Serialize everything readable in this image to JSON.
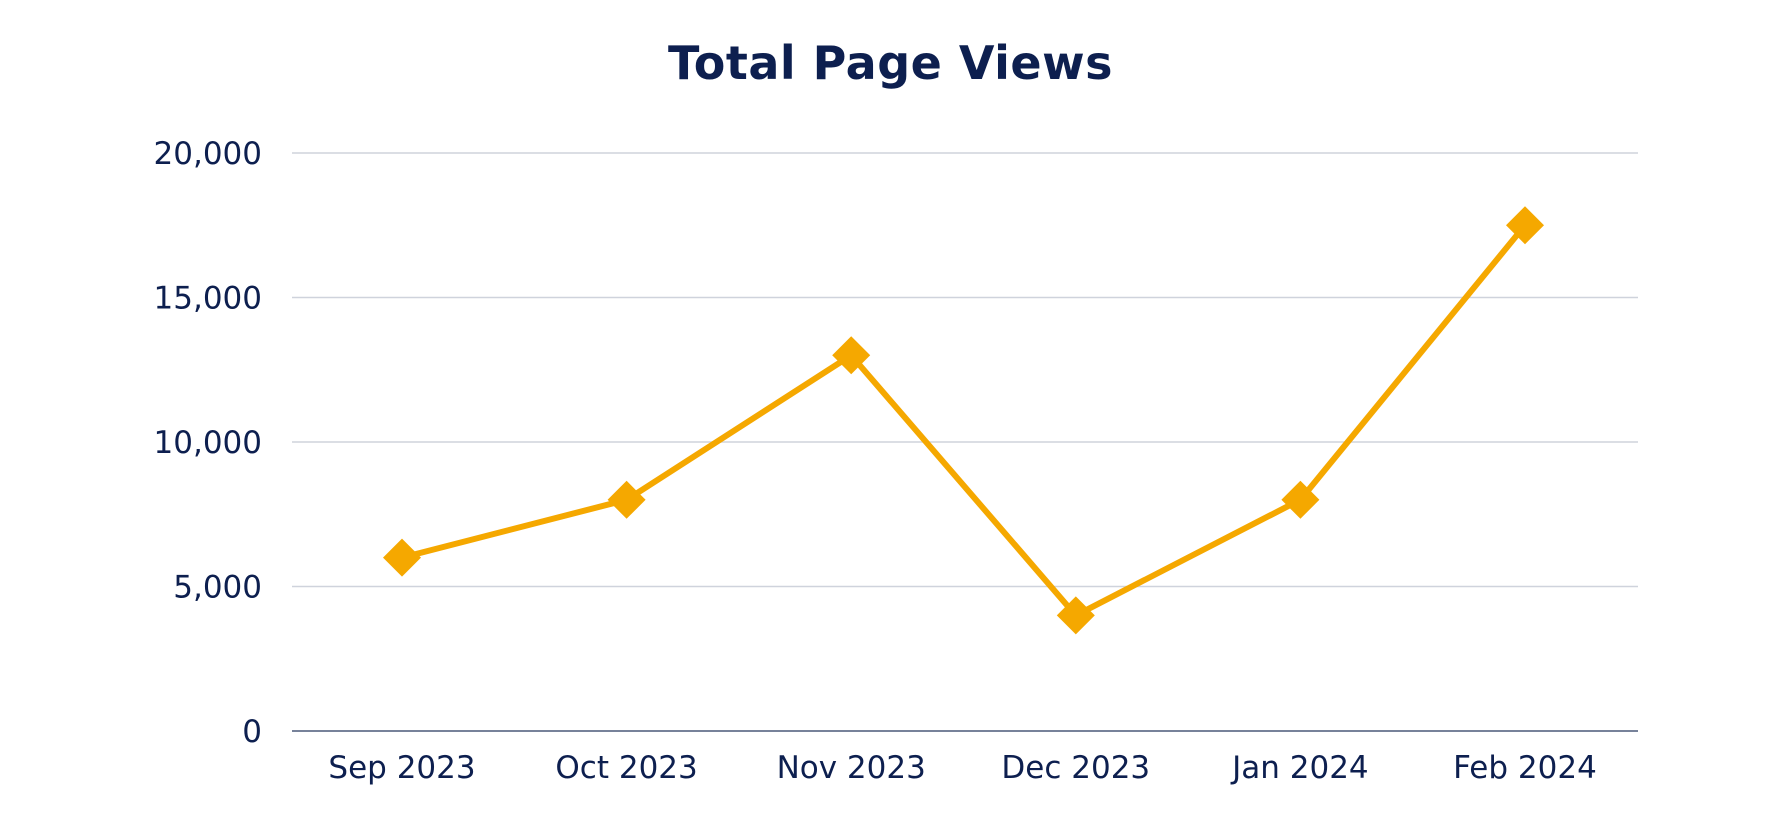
{
  "chart_data": {
    "type": "line",
    "title": "Total Page Views",
    "xlabel": "",
    "ylabel": "",
    "categories": [
      "Sep 2023",
      "Oct 2023",
      "Nov 2023",
      "Dec 2023",
      "Jan 2024",
      "Feb 2024"
    ],
    "series": [
      {
        "values": [
          6000,
          8000,
          13000,
          4000,
          8000,
          17500
        ]
      }
    ],
    "ylim": [
      0,
      20000
    ],
    "yticks": [
      0,
      5000,
      10000,
      15000,
      20000
    ],
    "ytick_labels": [
      "0",
      "5,000",
      "10,000",
      "15,000",
      "20,000"
    ],
    "grid": true,
    "legend": "none",
    "marker": "diamond",
    "colors": {
      "line": "#f5a800",
      "title": "#0d1f4f",
      "text": "#0d1f4f",
      "grid": "#cfd3dc",
      "axis": "#4a5878"
    }
  }
}
